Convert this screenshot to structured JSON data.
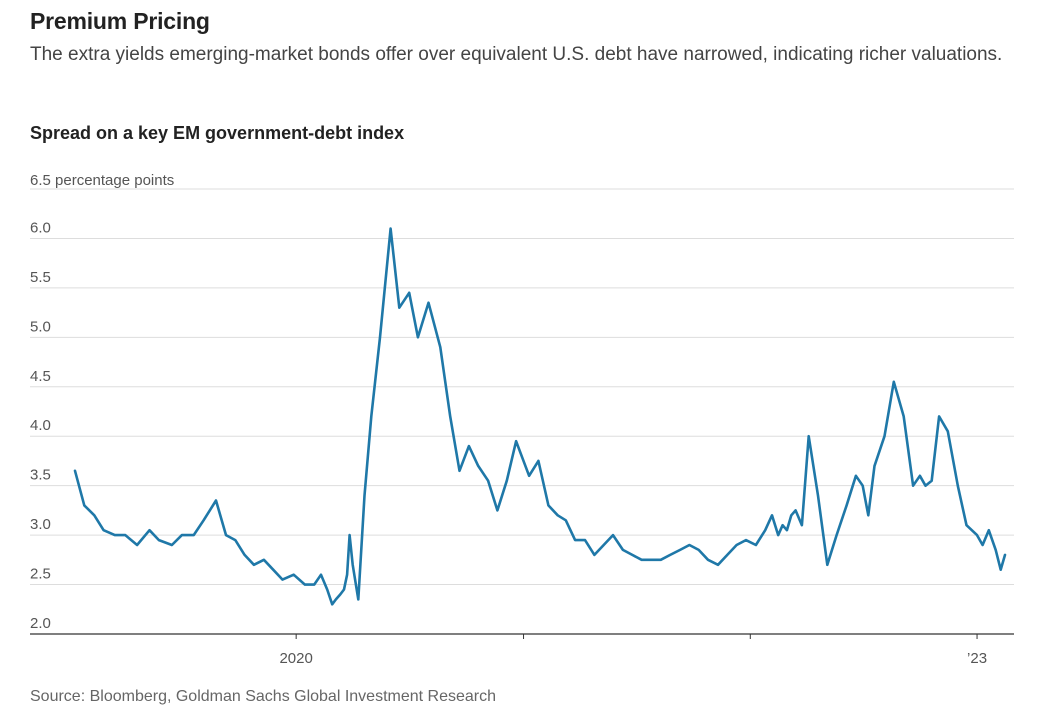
{
  "header": {
    "title": "Premium Pricing",
    "subtitle": "The extra yields emerging-market bonds offer over equivalent U.S. debt have narrowed, indicating richer valuations.",
    "chart_heading": "Spread on a key EM government-debt index"
  },
  "footer": {
    "source": "Source: Bloomberg, Goldman Sachs Global Investment Research"
  },
  "chart_data": {
    "type": "line",
    "title": "Spread on a key EM government-debt index",
    "ylabel": "percentage points",
    "ylim": [
      2.0,
      6.5
    ],
    "yticks": [
      2.0,
      2.5,
      3.0,
      3.5,
      4.0,
      4.5,
      5.0,
      5.5,
      6.0,
      6.5
    ],
    "ytick_labels": [
      "2.0",
      "2.5",
      "3.0",
      "3.5",
      "4.0",
      "4.5",
      "5.0",
      "5.5",
      "6.0",
      "6.5 percentage points"
    ],
    "xlim": [
      "2019-01-01",
      "2023-03-01"
    ],
    "xticks": [
      "2020-01-01",
      "2021-01-01",
      "2022-01-01",
      "2023-01-01"
    ],
    "xtick_labels": [
      "2020",
      "",
      "",
      "’23"
    ],
    "grid": true,
    "line_color": "#1f78a8",
    "series": [
      {
        "x": [
          "2019-01-10",
          "2019-01-25",
          "2019-02-10",
          "2019-02-25",
          "2019-03-15",
          "2019-04-01",
          "2019-04-20",
          "2019-05-10",
          "2019-05-25",
          "2019-06-15",
          "2019-07-01",
          "2019-07-20",
          "2019-08-05",
          "2019-08-25",
          "2019-09-10",
          "2019-09-25",
          "2019-10-10",
          "2019-10-25",
          "2019-11-10",
          "2019-11-25",
          "2019-12-10",
          "2019-12-28",
          "2020-01-15",
          "2020-01-30",
          "2020-02-10",
          "2020-02-20",
          "2020-02-28",
          "2020-03-05",
          "2020-03-12",
          "2020-03-18",
          "2020-03-23",
          "2020-03-27",
          "2020-04-01",
          "2020-04-10",
          "2020-04-20",
          "2020-05-01",
          "2020-05-15",
          "2020-06-01",
          "2020-06-15",
          "2020-07-01",
          "2020-07-15",
          "2020-08-01",
          "2020-08-20",
          "2020-09-05",
          "2020-09-20",
          "2020-10-05",
          "2020-10-20",
          "2020-11-05",
          "2020-11-20",
          "2020-12-05",
          "2020-12-20",
          "2021-01-10",
          "2021-01-25",
          "2021-02-10",
          "2021-02-25",
          "2021-03-10",
          "2021-03-25",
          "2021-04-10",
          "2021-04-25",
          "2021-05-10",
          "2021-05-25",
          "2021-06-10",
          "2021-06-25",
          "2021-07-10",
          "2021-07-25",
          "2021-08-10",
          "2021-08-25",
          "2021-09-10",
          "2021-09-25",
          "2021-10-10",
          "2021-10-25",
          "2021-11-10",
          "2021-11-25",
          "2021-12-10",
          "2021-12-25",
          "2022-01-10",
          "2022-01-25",
          "2022-02-05",
          "2022-02-15",
          "2022-02-22",
          "2022-03-01",
          "2022-03-08",
          "2022-03-15",
          "2022-03-25",
          "2022-04-05",
          "2022-04-20",
          "2022-05-05",
          "2022-05-20",
          "2022-06-05",
          "2022-06-20",
          "2022-07-01",
          "2022-07-10",
          "2022-07-20",
          "2022-08-05",
          "2022-08-20",
          "2022-09-05",
          "2022-09-20",
          "2022-10-01",
          "2022-10-10",
          "2022-10-20",
          "2022-11-01",
          "2022-11-15",
          "2022-12-01",
          "2022-12-15",
          "2023-01-01",
          "2023-01-10",
          "2023-01-20",
          "2023-01-31",
          "2023-02-08",
          "2023-02-15"
        ],
        "values": [
          3.65,
          3.3,
          3.2,
          3.05,
          3.0,
          3.0,
          2.9,
          3.05,
          2.95,
          2.9,
          3.0,
          3.0,
          3.15,
          3.35,
          3.0,
          2.95,
          2.8,
          2.7,
          2.75,
          2.65,
          2.55,
          2.6,
          2.5,
          2.5,
          2.6,
          2.45,
          2.3,
          2.35,
          2.4,
          2.45,
          2.6,
          3.0,
          2.7,
          2.35,
          3.4,
          4.2,
          5.0,
          6.1,
          5.3,
          5.45,
          5.0,
          5.35,
          4.9,
          4.2,
          3.65,
          3.9,
          3.7,
          3.55,
          3.25,
          3.55,
          3.95,
          3.6,
          3.75,
          3.3,
          3.2,
          3.15,
          2.95,
          2.95,
          2.8,
          2.9,
          3.0,
          2.85,
          2.8,
          2.75,
          2.75,
          2.75,
          2.8,
          2.85,
          2.9,
          2.85,
          2.75,
          2.7,
          2.8,
          2.9,
          2.95,
          2.9,
          3.05,
          3.2,
          3.0,
          3.1,
          3.05,
          3.2,
          3.25,
          3.1,
          4.0,
          3.4,
          2.7,
          3.0,
          3.3,
          3.6,
          3.5,
          3.2,
          3.7,
          4.0,
          4.55,
          4.2,
          3.5,
          3.6,
          3.5,
          3.55,
          4.2,
          4.05,
          3.5,
          3.1,
          3.0,
          2.9,
          3.05,
          2.85,
          2.65,
          2.8
        ]
      }
    ]
  }
}
